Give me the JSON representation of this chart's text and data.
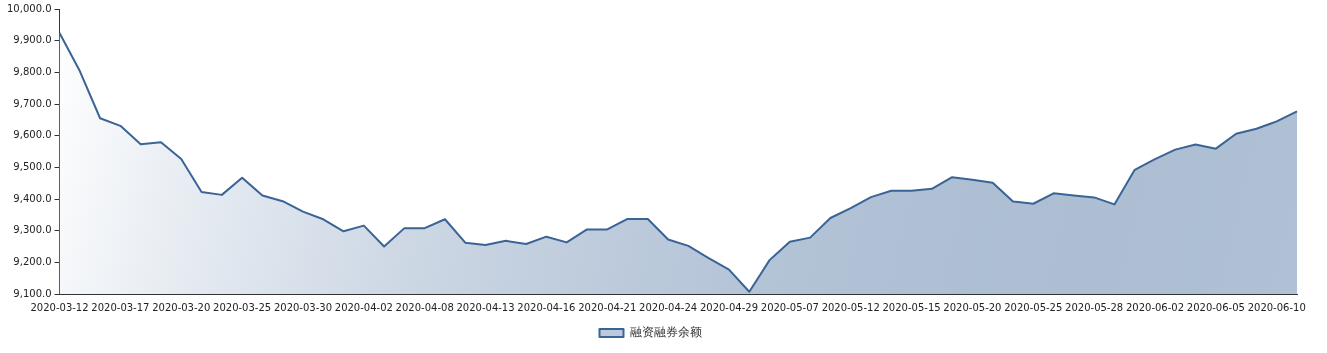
{
  "chart_data": {
    "type": "area",
    "categories": [
      "2020-03-12",
      null,
      null,
      "2020-03-17",
      null,
      null,
      "2020-03-20",
      null,
      null,
      "2020-03-25",
      null,
      null,
      "2020-03-30",
      null,
      null,
      "2020-04-02",
      null,
      null,
      "2020-04-08",
      null,
      null,
      "2020-04-13",
      null,
      null,
      "2020-04-16",
      null,
      null,
      "2020-04-21",
      null,
      null,
      "2020-04-24",
      null,
      null,
      "2020-04-29",
      null,
      null,
      "2020-05-07",
      null,
      null,
      "2020-05-12",
      null,
      null,
      "2020-05-15",
      null,
      null,
      "2020-05-20",
      null,
      null,
      "2020-05-25",
      null,
      null,
      "2020-05-28",
      null,
      null,
      "2020-06-02",
      null,
      null,
      "2020-06-05",
      null,
      null,
      "2020-06-10",
      null
    ],
    "series": [
      {
        "name": "融资融券余额",
        "color": "#3a6496",
        "values": [
          9924,
          9804,
          9655,
          9631,
          9573,
          9579,
          9526,
          9422,
          9413,
          9467,
          9411,
          9393,
          9360,
          9336,
          9298,
          9316,
          9250,
          9308,
          9308,
          9336,
          9262,
          9255,
          9268,
          9258,
          9281,
          9263,
          9304,
          9304,
          9337,
          9337,
          9272,
          9252,
          9213,
          9177,
          9107,
          9207,
          9265,
          9278,
          9340,
          9371,
          9406,
          9426,
          9426,
          9432,
          9469,
          9461,
          9451,
          9392,
          9385,
          9418,
          9411,
          9405,
          9383,
          9492,
          9526,
          9556,
          9572,
          9559,
          9606,
          9622,
          9645,
          9677
        ]
      }
    ],
    "ylim": [
      9100,
      10000
    ],
    "yticks": [
      {
        "value": 9100,
        "label": "9,100.0"
      },
      {
        "value": 9200,
        "label": "9,200.0"
      },
      {
        "value": 9300,
        "label": "9,300.0"
      },
      {
        "value": 9400,
        "label": "9,400.0"
      },
      {
        "value": 9500,
        "label": "9,500.0"
      },
      {
        "value": 9600,
        "label": "9,600.0"
      },
      {
        "value": 9700,
        "label": "9,700.0"
      },
      {
        "value": 9800,
        "label": "9,800.0"
      },
      {
        "value": 9900,
        "label": "9,900.0"
      },
      {
        "value": 10000,
        "label": "10,000.0"
      }
    ],
    "grid": false,
    "legend": "bottom",
    "marker": "none"
  }
}
